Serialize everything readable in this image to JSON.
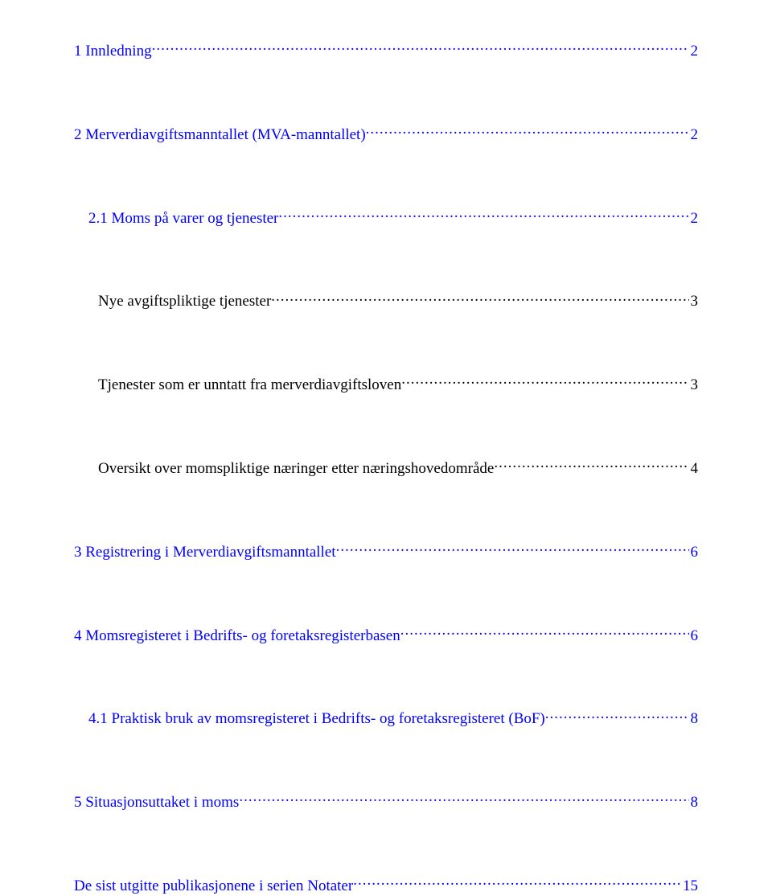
{
  "colors": {
    "link": "#0000ff",
    "text": "#000000",
    "background": "#ffffff"
  },
  "typography": {
    "font_family": "Times New Roman",
    "font_size_pt": 14
  },
  "toc": [
    {
      "label": "1 Innledning",
      "page": "2",
      "link": true,
      "indent": 0,
      "gap_after": "lg"
    },
    {
      "label": "2 Merverdiavgiftsmanntallet (MVA-manntallet)",
      "page": "2",
      "link": true,
      "indent": 0,
      "gap_after": "lg"
    },
    {
      "label": "2.1 Moms på varer og tjenester",
      "page": "2",
      "link": true,
      "indent": 1,
      "gap_after": "lg"
    },
    {
      "label": "Nye avgiftspliktige tjenester",
      "page": "3",
      "link": false,
      "indent": "sub",
      "gap_after": "lg"
    },
    {
      "label": "Tjenester som er unntatt fra merverdiavgiftsloven",
      "page": "3",
      "link": false,
      "indent": "sub",
      "gap_after": "lg"
    },
    {
      "label": "Oversikt over momspliktige næringer etter næringshovedområde",
      "page": "4",
      "link": false,
      "indent": "sub",
      "gap_after": "lg"
    },
    {
      "label": "3 Registrering i Merverdiavgiftsmanntallet",
      "page": "6",
      "link": true,
      "indent": 0,
      "gap_after": "lg"
    },
    {
      "label": "4 Momsregisteret i Bedrifts- og foretaksregisterbasen",
      "page": "6",
      "link": true,
      "indent": 0,
      "gap_after": "lg"
    },
    {
      "label": "4.1 Praktisk bruk av momsregisteret i Bedrifts- og foretaksregisteret (BoF)",
      "page": "8",
      "link": true,
      "indent": 1,
      "gap_after": "lg"
    },
    {
      "label": "5 Situasjonsuttaket i moms",
      "page": "8",
      "link": true,
      "indent": 0,
      "gap_after": "lg"
    },
    {
      "label": "De sist utgitte publikasjonene i serien Notater",
      "page": "15",
      "link": true,
      "indent": 0,
      "gap_after": "none"
    }
  ]
}
